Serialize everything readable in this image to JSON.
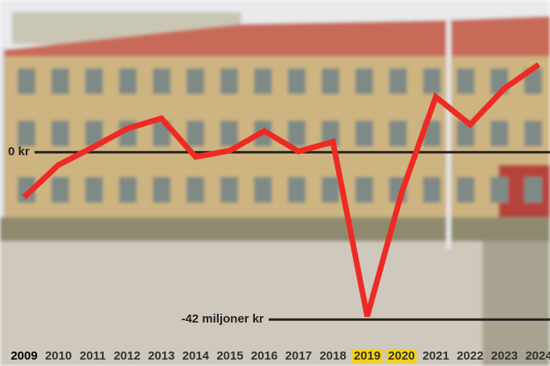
{
  "chart_data": {
    "type": "line",
    "categories": [
      "2009",
      "2010",
      "2011",
      "2012",
      "2013",
      "2014",
      "2015",
      "2016",
      "2017",
      "2018",
      "2019",
      "2020",
      "2021",
      "2022",
      "2023",
      "2024"
    ],
    "values": [
      -11.3,
      -3.2,
      1.2,
      5.9,
      8.5,
      -1.2,
      0.4,
      5.3,
      0.2,
      2.6,
      -41.2,
      -10.3,
      13.9,
      6.9,
      16,
      22
    ],
    "color": "#ee2a24",
    "ylim": [
      -46.6,
      38.2
    ],
    "reference_lines": [
      {
        "value": 0,
        "label": "0 kr"
      },
      {
        "value": -42,
        "label": "-42 miljoner kr"
      }
    ],
    "highlighted_categories": [
      "2019",
      "2020"
    ],
    "highlight_color": "#f6d20a"
  }
}
